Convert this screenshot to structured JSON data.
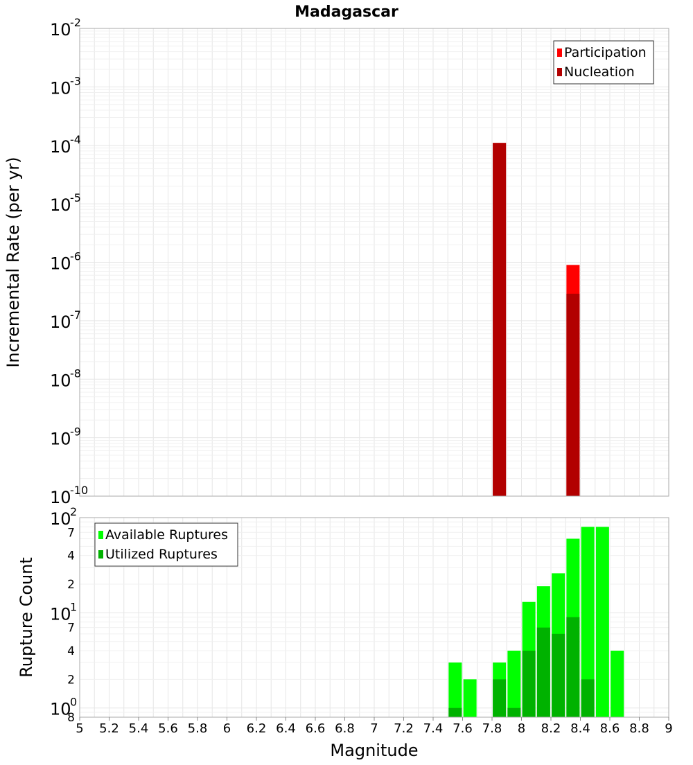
{
  "title": "Madagascar",
  "chart_data": [
    {
      "type": "bar",
      "scale": "log",
      "ylabel": "Incremental Rate (per yr)",
      "ylim": [
        1e-10,
        0.01
      ],
      "xlim": [
        5,
        9
      ],
      "grid": true,
      "legend_placement": "top-right",
      "y_tick_bases": [
        "10",
        "10",
        "10",
        "10",
        "10",
        "10",
        "10",
        "10",
        "10"
      ],
      "y_tick_exponents": [
        "-10",
        "-9",
        "-8",
        "-7",
        "-6",
        "-5",
        "-4",
        "-3",
        "-2"
      ],
      "series": [
        {
          "name": "Participation",
          "color": "#ff0000",
          "x": [
            7.85,
            8.35
          ],
          "values": [
            0.00011,
            9e-07
          ]
        },
        {
          "name": "Nucleation",
          "color": "#b20000",
          "x": [
            7.85,
            8.35
          ],
          "values": [
            0.00011,
            2.9e-07
          ]
        }
      ]
    },
    {
      "type": "bar",
      "scale": "log",
      "ylabel": "Rupture Count",
      "xlabel": "Magnitude",
      "ylim": [
        0.8,
        100
      ],
      "xlim": [
        5,
        9
      ],
      "grid": true,
      "legend_placement": "top-left",
      "x_ticks": [
        "5",
        "5.2",
        "5.4",
        "5.6",
        "5.8",
        "6",
        "6.2",
        "6.4",
        "6.6",
        "6.8",
        "7",
        "7.2",
        "7.4",
        "7.6",
        "7.8",
        "8",
        "8.2",
        "8.4",
        "8.6",
        "8.8",
        "9"
      ],
      "y_tick_bases": [
        "10",
        "10",
        "10"
      ],
      "y_tick_exponents": [
        "0",
        "1",
        "2"
      ],
      "y_minor_labels": [
        "8",
        "2",
        "4",
        "7",
        "2",
        "4",
        "7"
      ],
      "y_minor_values": [
        0.8,
        2,
        4,
        7,
        20,
        40,
        70
      ],
      "series": [
        {
          "name": "Available Ruptures",
          "color": "#00ff00",
          "x": [
            7.55,
            7.65,
            7.85,
            7.95,
            8.05,
            8.15,
            8.25,
            8.35,
            8.45,
            8.55,
            8.65
          ],
          "values": [
            3,
            2,
            3,
            4,
            13,
            19,
            26,
            60,
            80,
            80,
            4
          ]
        },
        {
          "name": "Utilized Ruptures",
          "color": "#00b200",
          "x": [
            7.55,
            7.85,
            7.95,
            8.05,
            8.15,
            8.25,
            8.35,
            8.45
          ],
          "values": [
            1,
            2,
            1,
            4,
            7,
            6,
            9,
            2
          ]
        }
      ]
    }
  ]
}
